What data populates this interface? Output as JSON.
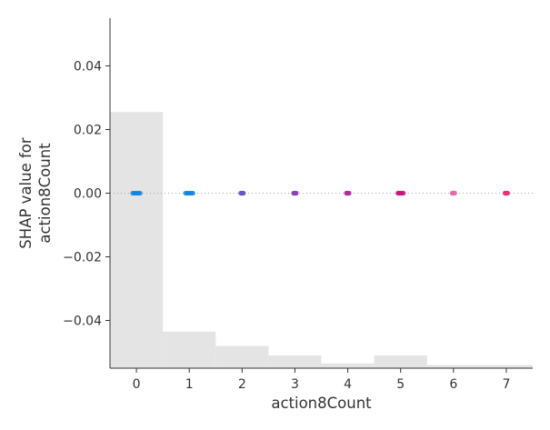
{
  "chart_data": {
    "type": "scatter",
    "xlabel": "action8Count",
    "ylabel_lines": [
      "SHAP value for",
      "action8Count"
    ],
    "xlim": [
      -0.5,
      7.5
    ],
    "ylim": [
      -0.055,
      0.055
    ],
    "x_ticks": [
      0,
      1,
      2,
      3,
      4,
      5,
      6,
      7
    ],
    "y_ticks": [
      -0.04,
      -0.02,
      0.0,
      0.02,
      0.04
    ],
    "y_tick_labels": [
      "−0.04",
      "−0.02",
      "0.00",
      "0.02",
      "0.04"
    ],
    "zero_line": true,
    "points": [
      {
        "x": 0,
        "y": 0.0,
        "color": "#0a84e0"
      },
      {
        "x": 1,
        "y": 0.0,
        "color": "#0a84e0"
      },
      {
        "x": 2,
        "y": 0.0,
        "color": "#6a52c8"
      },
      {
        "x": 3,
        "y": 0.0,
        "color": "#8f3fb8"
      },
      {
        "x": 4,
        "y": 0.0,
        "color": "#b12a9c"
      },
      {
        "x": 5,
        "y": 0.0,
        "color": "#d0107c"
      },
      {
        "x": 6,
        "y": 0.0,
        "color": "#e86aa8"
      },
      {
        "x": 7,
        "y": 0.0,
        "color": "#ef2f75"
      }
    ],
    "histogram": {
      "color": "#e4e4e4",
      "bins": [
        {
          "x0": -0.5,
          "x1": 0.5,
          "y": 0.0255
        },
        {
          "x0": 0.5,
          "x1": 1.5,
          "y": -0.0435
        },
        {
          "x0": 1.5,
          "x1": 2.5,
          "y": -0.048
        },
        {
          "x0": 2.5,
          "x1": 3.5,
          "y": -0.051
        },
        {
          "x0": 3.5,
          "x1": 4.5,
          "y": -0.0535
        },
        {
          "x0": 4.5,
          "x1": 5.5,
          "y": -0.051
        },
        {
          "x0": 5.5,
          "x1": 7.5,
          "y": -0.054
        }
      ]
    }
  }
}
